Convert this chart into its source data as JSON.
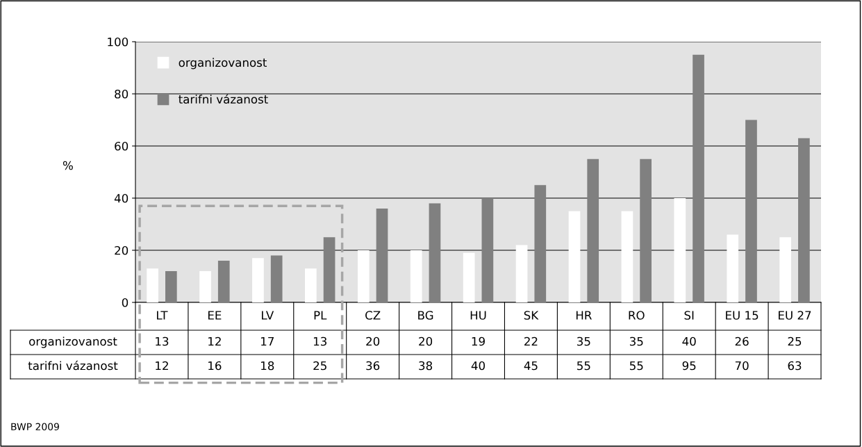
{
  "chart_data": {
    "type": "bar",
    "ylabel": "%",
    "categories": [
      "LT",
      "EE",
      "LV",
      "PL",
      "CZ",
      "BG",
      "HU",
      "SK",
      "HR",
      "RO",
      "SI",
      "EU 15",
      "EU 27"
    ],
    "series": [
      {
        "name": "organizovanost",
        "color": "#ffffff",
        "values": [
          13,
          12,
          17,
          13,
          20,
          20,
          19,
          22,
          35,
          35,
          40,
          26,
          25
        ]
      },
      {
        "name": "tarifni vázanost",
        "color": "#808080",
        "values": [
          12,
          16,
          18,
          25,
          36,
          38,
          40,
          45,
          55,
          55,
          95,
          70,
          63
        ]
      }
    ],
    "ylim": [
      0,
      100
    ],
    "yticks": [
      0,
      20,
      40,
      60,
      80,
      100
    ],
    "grid": "y",
    "legend": "top left",
    "data_labels": true,
    "annotations": [
      "BWP 2009"
    ]
  }
}
